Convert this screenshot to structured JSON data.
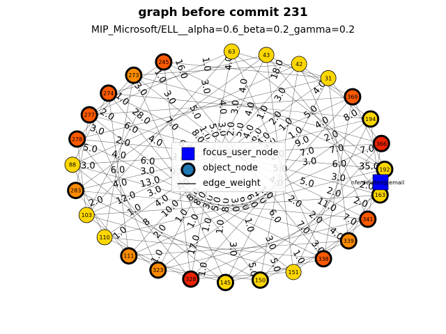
{
  "header": {
    "title": "graph before commit 231",
    "subtitle": "MIP_Microsoft/ELL__alpha=0.6_beta=0.2_gamma=0.2"
  },
  "legend": {
    "focus_label": "focus_user_node",
    "object_label": "object_node",
    "edge_label": "edge_weight"
  },
  "colors": {
    "focus_node": "#0000ff",
    "object_node_legend": "#1f77b4",
    "yellow": "#ffd700",
    "orange": "#ff8c00",
    "dark_orange": "#ff5a00",
    "red": "#ee2200",
    "edge": "#000000"
  },
  "focus_node": {
    "label": "nferdeleted@email"
  },
  "nodes": [
    {
      "label": "63",
      "color": "yellow",
      "thick": false
    },
    {
      "label": "43",
      "color": "yellow",
      "thick": false
    },
    {
      "label": "42",
      "color": "yellow",
      "thick": false
    },
    {
      "label": "31",
      "color": "yellow",
      "thick": false
    },
    {
      "label": "369",
      "color": "dark_orange",
      "thick": true
    },
    {
      "label": "194",
      "color": "yellow",
      "thick": true
    },
    {
      "label": "366",
      "color": "red",
      "thick": true
    },
    {
      "label": "192",
      "color": "yellow",
      "thick": true
    },
    {
      "label": "163",
      "color": "yellow",
      "thick": true
    },
    {
      "label": "341",
      "color": "dark_orange",
      "thick": true
    },
    {
      "label": "339",
      "color": "orange",
      "thick": true
    },
    {
      "label": "338",
      "color": "dark_orange",
      "thick": true
    },
    {
      "label": "151",
      "color": "yellow",
      "thick": false
    },
    {
      "label": "150",
      "color": "yellow",
      "thick": true
    },
    {
      "label": "145",
      "color": "yellow",
      "thick": true
    },
    {
      "label": "328",
      "color": "red",
      "thick": true
    },
    {
      "label": "323",
      "color": "orange",
      "thick": true
    },
    {
      "label": "111",
      "color": "orange",
      "thick": true
    },
    {
      "label": "110",
      "color": "yellow",
      "thick": false
    },
    {
      "label": "103",
      "color": "yellow",
      "thick": false
    },
    {
      "label": "283",
      "color": "orange",
      "thick": true
    },
    {
      "label": "88",
      "color": "yellow",
      "thick": false
    },
    {
      "label": "278",
      "color": "dark_orange",
      "thick": true
    },
    {
      "label": "277",
      "color": "dark_orange",
      "thick": true
    },
    {
      "label": "274",
      "color": "dark_orange",
      "thick": true
    },
    {
      "label": "273",
      "color": "orange",
      "thick": true
    },
    {
      "label": "245",
      "color": "dark_orange",
      "thick": true
    }
  ],
  "edge_labels": [
    "35.0",
    "8",
    "3.0",
    "4.0",
    "5.0",
    "4.0",
    "1.0",
    "1.0",
    "2.0",
    "12.0",
    "1.0",
    "6.0",
    "2.0",
    "7.0",
    "1.0",
    "3.0",
    "4.0",
    "6.0",
    "1.0",
    "8.0",
    "13.0",
    "3.0",
    "4.0",
    "5.0",
    "1.0",
    "2.0",
    "9.0",
    "3.0",
    "16.0",
    "11.0",
    "13.0",
    "6.0",
    "5.0",
    "28.0",
    "3.0",
    "8.0",
    "4.0",
    "7.0",
    "6.0",
    "9.0",
    "1.0",
    "3.0",
    "5.0",
    "1.0",
    "18.0",
    "3.0",
    "4.0",
    "2.0",
    "1.0",
    "3.0",
    "2.0",
    "9.0",
    "4.0",
    "3.0",
    "7.0",
    "5.0",
    "1.0",
    "4.0",
    "6.0",
    "3.0",
    "8.0",
    "17.0",
    "5.0",
    "4.0",
    "2.0",
    "3.0",
    "1.0",
    "6.0",
    "7.0",
    "2.0",
    "4.0",
    "1.0",
    "3.0",
    "5.0",
    "1.0",
    "8.0",
    "2.0",
    "1.0",
    "4.0",
    "6.0",
    "3.0",
    "2.0",
    "1.0",
    "5.0",
    "7.0",
    "4.0",
    "2.0",
    "3.0",
    "1.0",
    "6.0",
    "10.0",
    "2.0",
    "3.0",
    "4.0",
    "1.0",
    "5.0",
    "1.0",
    "2.0",
    "3.0",
    "4.0",
    "5.0",
    "6.0",
    "7.0",
    "8.0",
    "1.0",
    "2.0",
    "3.0",
    "4.0"
  ]
}
